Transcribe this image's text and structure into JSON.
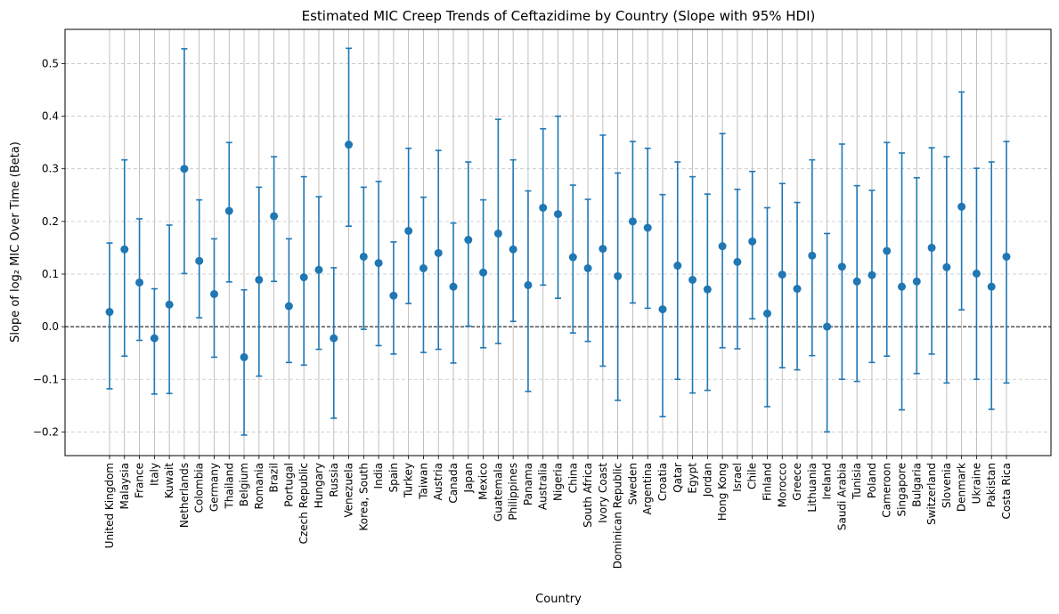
{
  "chart_data": {
    "type": "scatter",
    "title": "Estimated MIC Creep Trends of Ceftazidime by Country (Slope with 95% HDI)",
    "xlabel": "Country",
    "ylabel": "Slope of log₂ MIC Over Time (Beta)",
    "ylim": [
      -0.245,
      0.565
    ],
    "yticks": [
      -0.2,
      -0.1,
      0.0,
      0.1,
      0.2,
      0.3,
      0.4,
      0.5
    ],
    "ytick_labels": [
      "−0.2",
      "−0.1",
      "0.0",
      "0.1",
      "0.2",
      "0.3",
      "0.4",
      "0.5"
    ],
    "grid": true,
    "reference_line": 0.0,
    "color": "#1f77b4",
    "categories": [
      "United Kingdom",
      "Malaysia",
      "France",
      "Italy",
      "Kuwait",
      "Netherlands",
      "Colombia",
      "Germany",
      "Thailand",
      "Belgium",
      "Romania",
      "Brazil",
      "Portugal",
      "Czech Republic",
      "Hungary",
      "Russia",
      "Venezuela",
      "Korea, South",
      "India",
      "Spain",
      "Turkey",
      "Taiwan",
      "Austria",
      "Canada",
      "Japan",
      "Mexico",
      "Guatemala",
      "Philippines",
      "Panama",
      "Australia",
      "Nigeria",
      "China",
      "South Africa",
      "Ivory Coast",
      "Dominican Republic",
      "Sweden",
      "Argentina",
      "Croatia",
      "Qatar",
      "Egypt",
      "Jordan",
      "Hong Kong",
      "Israel",
      "Chile",
      "Finland",
      "Morocco",
      "Greece",
      "Lithuania",
      "Ireland",
      "Saudi Arabia",
      "Tunisia",
      "Poland",
      "Cameroon",
      "Singapore",
      "Bulgaria",
      "Switzerland",
      "Slovenia",
      "Denmark",
      "Ukraine",
      "Pakistan",
      "Costa Rica"
    ],
    "values": [
      0.028,
      0.147,
      0.084,
      -0.022,
      0.042,
      0.3,
      0.125,
      0.062,
      0.22,
      -0.058,
      0.089,
      0.21,
      0.039,
      0.094,
      0.108,
      -0.022,
      0.346,
      0.133,
      0.121,
      0.059,
      0.182,
      0.111,
      0.14,
      0.076,
      0.165,
      0.103,
      0.177,
      0.147,
      0.079,
      0.226,
      0.214,
      0.132,
      0.111,
      0.148,
      0.096,
      0.2,
      0.188,
      0.033,
      0.116,
      0.089,
      0.071,
      0.153,
      0.123,
      0.162,
      0.025,
      0.099,
      0.072,
      0.135,
      0.0,
      0.114,
      0.086,
      0.098,
      0.144,
      0.076,
      0.086,
      0.15,
      0.113,
      0.228,
      0.101,
      0.076,
      0.133
    ],
    "lower": [
      -0.118,
      -0.056,
      -0.026,
      -0.128,
      -0.127,
      0.101,
      0.017,
      -0.058,
      0.085,
      -0.206,
      -0.094,
      0.086,
      -0.068,
      -0.073,
      -0.043,
      -0.174,
      0.191,
      -0.005,
      -0.036,
      -0.052,
      0.044,
      -0.049,
      -0.043,
      -0.069,
      0.001,
      -0.04,
      -0.032,
      0.01,
      -0.123,
      0.079,
      0.054,
      -0.012,
      -0.028,
      -0.075,
      -0.14,
      0.045,
      0.035,
      -0.171,
      -0.1,
      -0.126,
      -0.121,
      -0.04,
      -0.042,
      0.015,
      -0.152,
      -0.078,
      -0.082,
      -0.055,
      -0.2,
      -0.1,
      -0.104,
      -0.068,
      -0.056,
      -0.158,
      -0.089,
      -0.052,
      -0.107,
      0.032,
      -0.1,
      -0.157,
      -0.107
    ],
    "upper": [
      0.159,
      0.317,
      0.205,
      0.072,
      0.193,
      0.528,
      0.241,
      0.167,
      0.35,
      0.07,
      0.265,
      0.323,
      0.167,
      0.285,
      0.247,
      0.112,
      0.529,
      0.265,
      0.276,
      0.161,
      0.339,
      0.246,
      0.335,
      0.197,
      0.313,
      0.241,
      0.394,
      0.317,
      0.258,
      0.376,
      0.4,
      0.269,
      0.242,
      0.364,
      0.292,
      0.352,
      0.339,
      0.251,
      0.313,
      0.285,
      0.252,
      0.367,
      0.261,
      0.295,
      0.226,
      0.272,
      0.236,
      0.317,
      0.177,
      0.347,
      0.268,
      0.259,
      0.35,
      0.33,
      0.283,
      0.34,
      0.323,
      0.446,
      0.301,
      0.313,
      0.352
    ]
  }
}
